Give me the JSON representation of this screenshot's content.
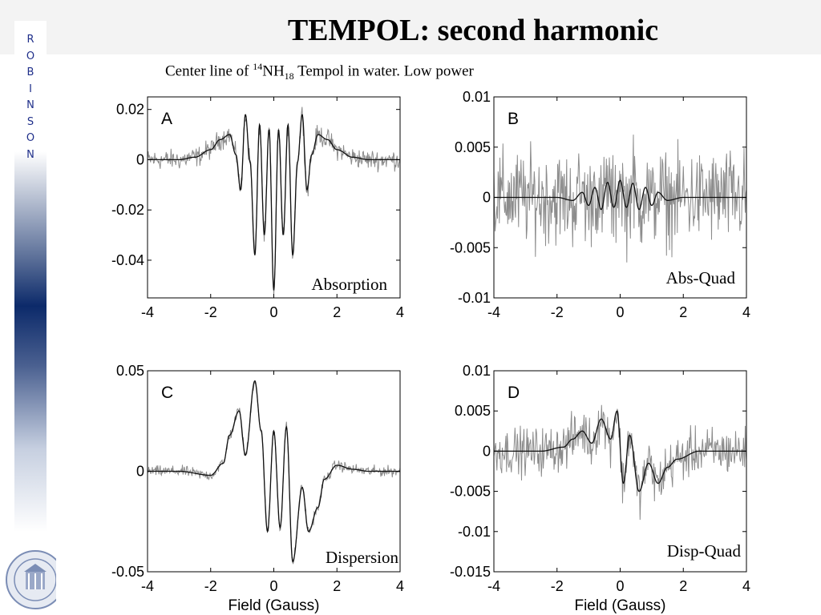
{
  "slide": {
    "title": "TEMPOL:  second  harmonic",
    "subtitle": {
      "pre": "Center line of ",
      "isotope": "14",
      "base": "NH",
      "count": "18",
      "post": " Tempol in water.  Low power"
    },
    "sidebar_letters": [
      "R",
      "O",
      "B",
      "I",
      "N",
      "S",
      "O",
      "N"
    ]
  },
  "colors": {
    "fit_line": "#111111",
    "noisy_data": "#8c8c8c",
    "sidebar_text": "#1f2f8a",
    "sidebar_dark": "#0c2a6a"
  },
  "chart_data": [
    {
      "type": "line",
      "panel": "A",
      "name": "Absorption",
      "xlabel": "",
      "ylabel": "",
      "xlim": [
        -4,
        4
      ],
      "ylim": [
        -0.055,
        0.025
      ],
      "xticks": [
        -4,
        -2,
        0,
        2,
        4
      ],
      "xtick_labels": [
        "-4",
        "-2",
        "0",
        "2",
        "4"
      ],
      "yticks": [
        0.02,
        0,
        -0.02,
        -0.04
      ],
      "ytick_labels": [
        "0.02",
        "0",
        "-0.02",
        "-0.04"
      ],
      "noise": 0.003,
      "fit": {
        "x": [
          -4,
          -3,
          -2.5,
          -2,
          -1.7,
          -1.4,
          -1.2,
          -1.05,
          -0.9,
          -0.75,
          -0.6,
          -0.45,
          -0.3,
          -0.15,
          0,
          0.15,
          0.3,
          0.45,
          0.6,
          0.75,
          0.9,
          1.05,
          1.2,
          1.4,
          1.7,
          2,
          2.5,
          3,
          4
        ],
        "y": [
          0,
          0,
          0.001,
          0.004,
          0.008,
          0.01,
          0.002,
          -0.012,
          0.018,
          -0.001,
          -0.038,
          0.014,
          -0.03,
          0.012,
          -0.052,
          0.012,
          -0.03,
          0.014,
          -0.038,
          -0.001,
          0.018,
          -0.012,
          0.002,
          0.01,
          0.008,
          0.004,
          0.001,
          0,
          0
        ]
      }
    },
    {
      "type": "line",
      "panel": "B",
      "name": "Abs-Quad",
      "xlabel": "",
      "ylabel": "",
      "xlim": [
        -4,
        4
      ],
      "ylim": [
        -0.01,
        0.01
      ],
      "xticks": [
        -4,
        -2,
        0,
        2,
        4
      ],
      "xtick_labels": [
        "-4",
        "-2",
        "0",
        "2",
        "4"
      ],
      "yticks": [
        0.01,
        0.005,
        0,
        -0.005,
        -0.01
      ],
      "ytick_labels": [
        "0.01",
        "0.005",
        "0",
        "-0.005",
        "-0.01"
      ],
      "noise": 0.0035,
      "fit": {
        "x": [
          -4,
          -2,
          -1.5,
          -1.2,
          -1,
          -0.8,
          -0.6,
          -0.4,
          -0.2,
          0,
          0.2,
          0.4,
          0.6,
          0.8,
          1,
          1.2,
          1.5,
          2,
          4
        ],
        "y": [
          0,
          0,
          -0.0003,
          0.0005,
          -0.0008,
          0.001,
          -0.0012,
          0.0015,
          -0.001,
          0.0017,
          -0.001,
          0.0014,
          -0.0012,
          0.001,
          -0.0008,
          0.0005,
          -0.0003,
          0,
          0
        ]
      }
    },
    {
      "type": "line",
      "panel": "C",
      "name": "Dispersion",
      "xlabel": "Field (Gauss)",
      "ylabel": "",
      "xlim": [
        -4,
        4
      ],
      "ylim": [
        -0.05,
        0.05
      ],
      "xticks": [
        -4,
        -2,
        0,
        2,
        4
      ],
      "xtick_labels": [
        "-4",
        "-2",
        "0",
        "2",
        "4"
      ],
      "yticks": [
        0.05,
        0,
        -0.05
      ],
      "ytick_labels": [
        "0.05",
        "0",
        "-0.05"
      ],
      "noise": 0.002,
      "fit": {
        "x": [
          -4,
          -3,
          -2,
          -1.6,
          -1.4,
          -1.1,
          -0.9,
          -0.6,
          -0.4,
          -0.2,
          0,
          0.2,
          0.4,
          0.6,
          0.9,
          1.1,
          1.4,
          1.6,
          2,
          2.5,
          3,
          4
        ],
        "y": [
          0,
          0,
          -0.002,
          0.004,
          0.018,
          0.03,
          0.008,
          0.045,
          0.02,
          -0.03,
          0.02,
          -0.028,
          0.022,
          -0.045,
          -0.008,
          -0.03,
          -0.018,
          -0.004,
          0.003,
          0.001,
          0,
          0
        ]
      }
    },
    {
      "type": "line",
      "panel": "D",
      "name": "Disp-Quad",
      "xlabel": "Field (Gauss)",
      "ylabel": "",
      "xlim": [
        -4,
        4
      ],
      "ylim": [
        -0.015,
        0.01
      ],
      "xticks": [
        -4,
        -2,
        0,
        2,
        4
      ],
      "xtick_labels": [
        "-4",
        "-2",
        "0",
        "2",
        "4"
      ],
      "yticks": [
        0.01,
        0.005,
        0,
        -0.005,
        -0.01,
        -0.015
      ],
      "ytick_labels": [
        "0.01",
        "0.005",
        "0",
        "-0.005",
        "-0.01",
        "-0.015"
      ],
      "noise": 0.0022,
      "fit": {
        "x": [
          -4,
          -2.5,
          -1.8,
          -1.5,
          -1.2,
          -0.9,
          -0.6,
          -0.3,
          -0.1,
          0.1,
          0.3,
          0.6,
          0.9,
          1.2,
          1.5,
          1.8,
          2.5,
          4
        ],
        "y": [
          0,
          0,
          0.0005,
          0.0015,
          0.0025,
          0.001,
          0.004,
          0.0015,
          0.005,
          -0.004,
          0.002,
          -0.005,
          -0.0015,
          -0.004,
          -0.002,
          -0.001,
          0,
          0
        ]
      }
    }
  ]
}
